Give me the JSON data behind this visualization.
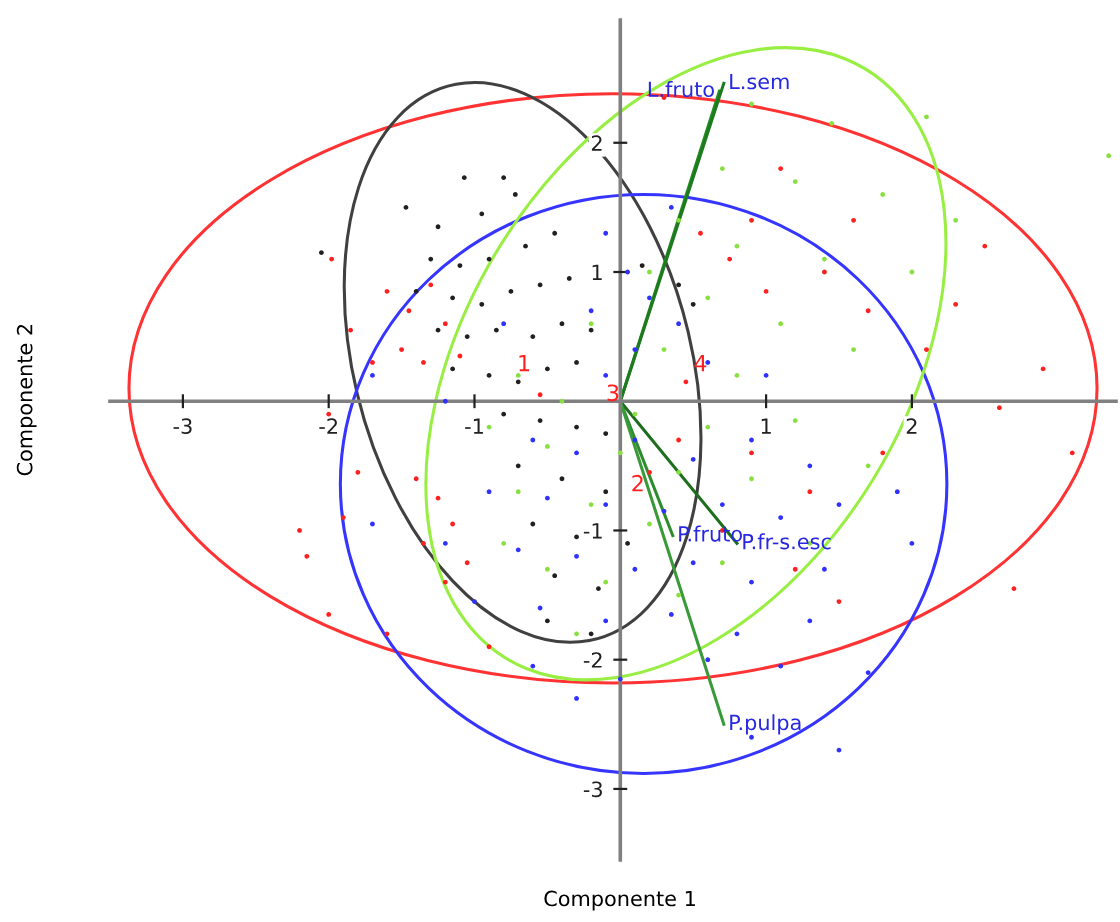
{
  "chart_data": {
    "type": "scatter",
    "xlabel": "Componente 1",
    "ylabel": "Componente 2",
    "xlim": [
      -3.5,
      3.4
    ],
    "ylim": [
      -3.55,
      2.95
    ],
    "xticks": [
      -3,
      -2,
      -1,
      1,
      2
    ],
    "yticks": [
      -3,
      -2,
      -1,
      1,
      2
    ],
    "grid": false,
    "legend": false,
    "marker": "circle",
    "series": [
      {
        "color": "#ff2020",
        "x": [
          -1.98,
          -1.6,
          -1.45,
          -1.3,
          -1.2,
          -1.5,
          -1.35,
          -1.7,
          -1.85,
          -1.1,
          -2.0,
          -2.15,
          -2.2,
          -1.8,
          -1.4,
          -1.25,
          -1.15,
          -1.35,
          -1.05,
          -1.2,
          -1.6,
          -2.0,
          -0.9,
          -1.9,
          0.3,
          1.1,
          0.9,
          1.6,
          1.4,
          0.55,
          0.75,
          1.0,
          1.7,
          2.1,
          2.3,
          2.9,
          2.6,
          3.1,
          2.7,
          1.8,
          1.3,
          0.9,
          0.7,
          1.2,
          0.4,
          0.2,
          0.45,
          -0.55,
          1.5,
          2.5
        ],
        "values": [
          1.1,
          0.85,
          0.7,
          0.9,
          0.6,
          0.4,
          0.3,
          0.3,
          0.55,
          0.35,
          -0.1,
          -1.2,
          -1.0,
          -0.55,
          -0.6,
          -0.75,
          -0.95,
          -1.1,
          -1.25,
          -1.4,
          -1.8,
          -1.65,
          -1.9,
          -0.9,
          2.35,
          1.8,
          1.4,
          1.4,
          1.0,
          1.3,
          1.1,
          0.85,
          0.7,
          0.4,
          0.75,
          0.25,
          -0.05,
          -0.4,
          -1.45,
          -0.4,
          -0.7,
          -0.4,
          -1.0,
          -1.3,
          -0.3,
          -0.55,
          0.15,
          0.05,
          -1.55,
          1.2
        ]
      },
      {
        "color": "#202020",
        "x": [
          -2.05,
          -1.07,
          -0.8,
          -1.47,
          -1.25,
          -0.95,
          -0.72,
          -1.3,
          -1.1,
          -0.9,
          -0.65,
          -0.45,
          -1.4,
          -1.15,
          -0.95,
          -0.75,
          -0.55,
          -0.35,
          -1.25,
          -1.05,
          -0.85,
          -0.6,
          -0.4,
          -0.2,
          -1.15,
          -0.9,
          -0.7,
          -0.5,
          -0.3,
          -0.8,
          -0.55,
          -0.3,
          -0.1,
          -0.7,
          -0.4,
          -0.1,
          -0.6,
          -0.3,
          0.05,
          -0.45,
          -0.15,
          -0.5,
          -0.2,
          0.15,
          0.4,
          0.5
        ],
        "values": [
          1.15,
          1.73,
          1.73,
          1.5,
          1.35,
          1.45,
          1.6,
          1.1,
          1.05,
          1.1,
          1.2,
          1.3,
          0.85,
          0.8,
          0.75,
          0.85,
          0.9,
          0.95,
          0.55,
          0.5,
          0.55,
          0.5,
          0.6,
          0.55,
          0.25,
          0.2,
          0.15,
          0.25,
          0.3,
          -0.1,
          -0.15,
          -0.2,
          -0.25,
          -0.5,
          -0.6,
          -0.7,
          -0.95,
          -1.05,
          -1.1,
          -1.35,
          -1.45,
          -1.7,
          -1.8,
          1.05,
          0.9,
          0.75
        ]
      },
      {
        "color": "#3030ff",
        "x": [
          0.35,
          -0.1,
          0.05,
          0.2,
          -0.2,
          0.4,
          0.1,
          -0.1,
          0.6,
          -1.7,
          -0.8,
          -1.2,
          -0.6,
          -0.3,
          0.1,
          0.5,
          0.9,
          1.3,
          -0.9,
          -0.5,
          -0.1,
          0.3,
          0.7,
          1.1,
          1.5,
          1.9,
          -1.2,
          -0.7,
          -0.3,
          0.1,
          0.5,
          0.9,
          1.4,
          2.0,
          -1.0,
          -0.55,
          -0.1,
          0.35,
          0.8,
          1.3,
          -0.6,
          0.0,
          0.6,
          1.1,
          1.7,
          1.5,
          0.9,
          -0.3,
          -1.7,
          1.0
        ],
        "values": [
          1.5,
          1.3,
          1.0,
          0.8,
          0.7,
          0.6,
          0.4,
          0.2,
          0.3,
          0.2,
          0.6,
          0.0,
          -0.3,
          -0.4,
          -0.3,
          -0.45,
          -0.3,
          -0.5,
          -0.7,
          -0.75,
          -0.8,
          -0.85,
          -0.8,
          -0.9,
          -0.8,
          -0.7,
          -1.1,
          -1.15,
          -1.2,
          -1.3,
          -1.25,
          -1.4,
          -1.3,
          -1.1,
          -1.55,
          -1.6,
          -1.7,
          -1.65,
          -1.8,
          -1.7,
          -2.05,
          -2.15,
          -2.0,
          -2.05,
          -2.1,
          -2.7,
          -2.6,
          -2.3,
          -0.95,
          0.2
        ]
      },
      {
        "color": "#88e040",
        "x": [
          0.9,
          1.45,
          2.1,
          3.35,
          0.7,
          1.2,
          1.8,
          2.3,
          0.4,
          0.8,
          1.4,
          2.0,
          0.2,
          0.6,
          1.1,
          1.6,
          -0.2,
          0.3,
          0.8,
          -0.7,
          -0.4,
          0.1,
          0.6,
          1.2,
          -0.9,
          -0.5,
          0.0,
          0.4,
          0.9,
          -0.7,
          -0.2,
          0.2,
          0.7,
          1.3,
          -0.5,
          -0.1,
          0.4,
          -0.3,
          -0.8,
          1.7
        ],
        "values": [
          2.3,
          2.15,
          2.2,
          1.9,
          1.8,
          1.7,
          1.6,
          1.4,
          1.4,
          1.2,
          1.1,
          1.0,
          1.0,
          0.8,
          0.6,
          0.4,
          0.6,
          0.4,
          0.2,
          0.2,
          0.0,
          -0.1,
          -0.2,
          -0.15,
          -0.2,
          -0.35,
          -0.4,
          -0.55,
          -0.6,
          -0.7,
          -0.8,
          -0.95,
          -1.25,
          -1.1,
          -1.3,
          -1.4,
          -1.5,
          -1.8,
          -1.1,
          -0.5
        ]
      },
      {
        "type": "line",
        "name": "L.fruto",
        "color": "#228b22",
        "marker": "none",
        "x": [
          0,
          0.68
        ],
        "values": [
          0,
          2.4
        ]
      },
      {
        "type": "line",
        "name": "L.sem",
        "color": "#1e7a1e",
        "marker": "none",
        "x": [
          0,
          0.71
        ],
        "values": [
          0,
          2.46
        ]
      },
      {
        "type": "line",
        "name": "P.fruto",
        "color": "#2e8b2e",
        "marker": "none",
        "x": [
          0,
          0.36
        ],
        "values": [
          0,
          -1.04
        ]
      },
      {
        "type": "line",
        "name": "P.fr-s.esc",
        "color": "#1e6e1e",
        "marker": "none",
        "x": [
          0,
          0.8
        ],
        "values": [
          0,
          -1.1
        ]
      },
      {
        "type": "line",
        "name": "P.pulpa",
        "color": "#3a9a3a",
        "marker": "none",
        "x": [
          0,
          0.71
        ],
        "values": [
          0,
          -2.5
        ]
      }
    ],
    "annotations": [
      {
        "text": "1",
        "x": -0.66,
        "y": 0.28
      },
      {
        "text": "2",
        "x": 0.12,
        "y": -0.65
      },
      {
        "text": "3",
        "x": -0.05,
        "y": 0.05
      },
      {
        "text": "4",
        "x": 0.55,
        "y": 0.28
      }
    ]
  }
}
